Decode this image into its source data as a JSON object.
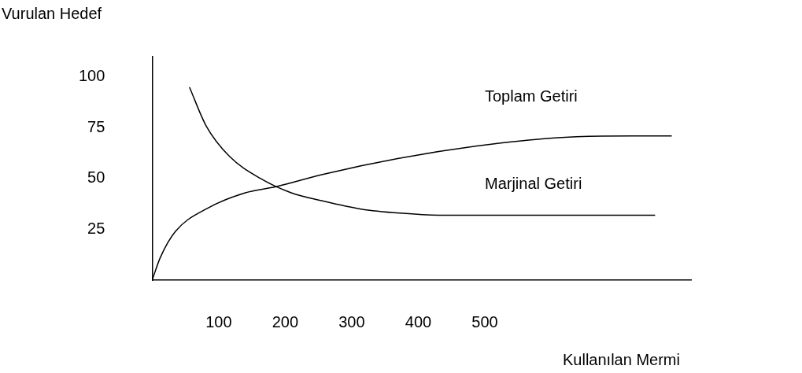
{
  "chart_data": {
    "type": "line",
    "xlabel": "Kullanılan Mermi",
    "ylabel": "Vurulan Hedef",
    "xlim": [
      0,
      810
    ],
    "ylim": [
      0,
      110
    ],
    "xticks": [
      100,
      200,
      300,
      400,
      500
    ],
    "yticks": [
      25,
      50,
      75,
      100
    ],
    "grid": false,
    "legend": false,
    "marker": "none",
    "line_style": "solid",
    "series": [
      {
        "name": "Toplam Getiri",
        "color": "#000000",
        "x": [
          0,
          12,
          35,
          81,
          140,
          186,
          256,
          372,
          488,
          605,
          721,
          781
        ],
        "values": [
          0,
          11,
          24,
          35,
          43,
          46,
          52,
          60,
          66,
          70,
          71,
          71
        ]
      },
      {
        "name": "Marjinal Getiri",
        "color": "#000000",
        "x": [
          56,
          81,
          116,
          163,
          209,
          256,
          314,
          372,
          430,
          547,
          663,
          756
        ],
        "values": [
          95,
          76,
          61,
          50,
          43,
          39,
          35,
          33,
          32,
          32,
          32,
          32
        ]
      }
    ]
  }
}
